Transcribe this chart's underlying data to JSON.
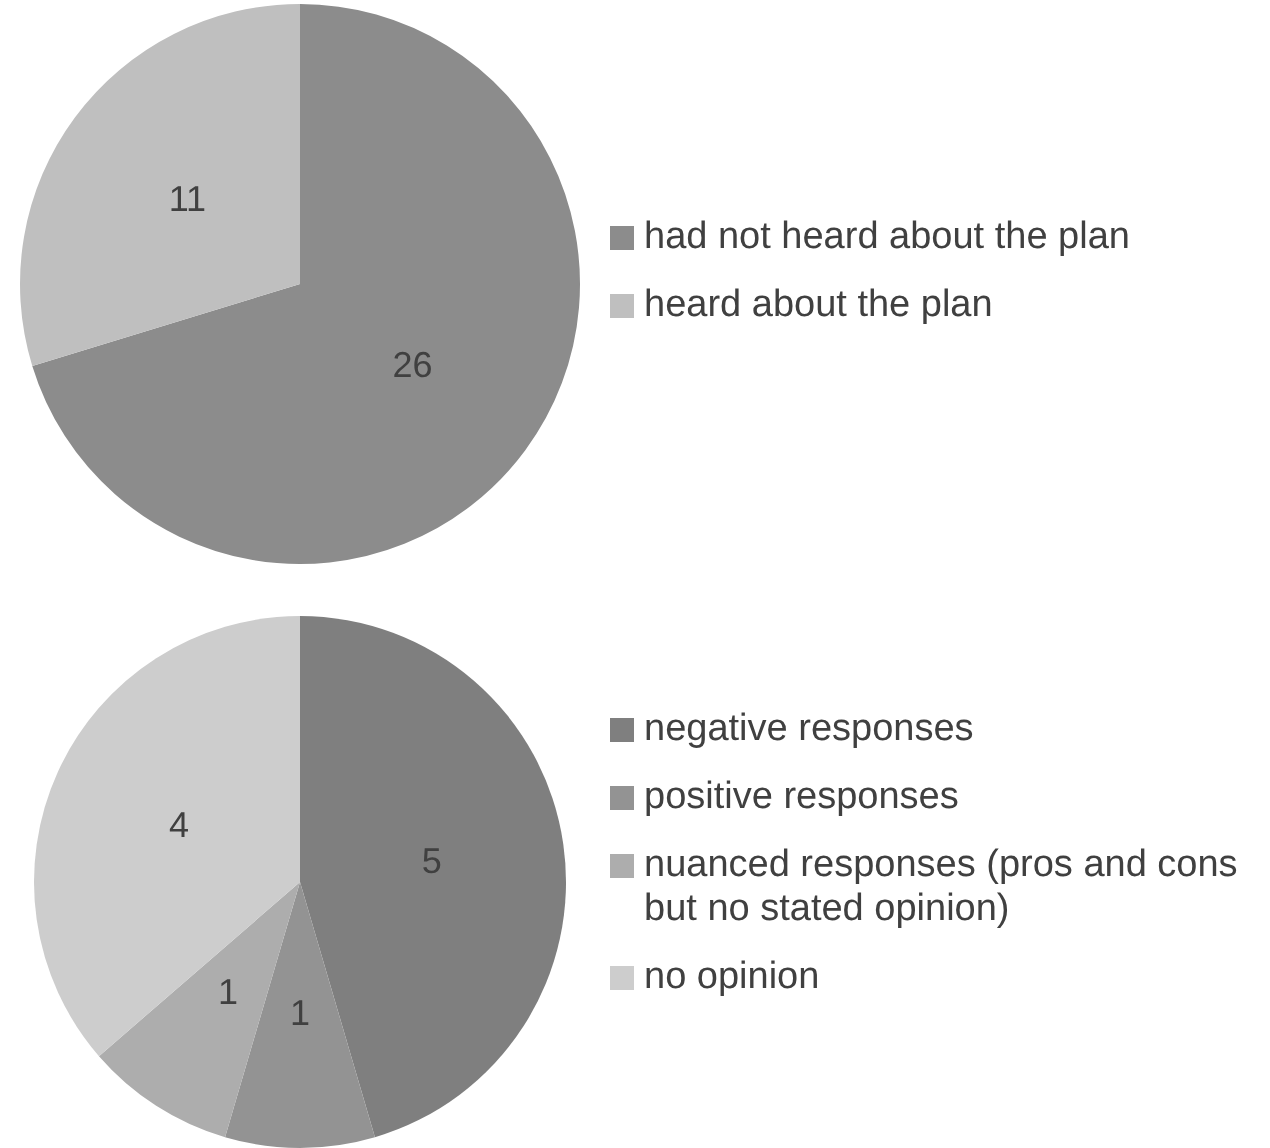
{
  "chart_data": [
    {
      "type": "pie",
      "categories": [
        "had not heard about the plan",
        "heard about the plan"
      ],
      "values": [
        26,
        11
      ],
      "colors": [
        "#8c8c8c",
        "#bfbfbf"
      ],
      "data_labels": true,
      "legend": "right"
    },
    {
      "type": "pie",
      "categories": [
        "negative responses",
        "positive responses",
        "nuanced responses (pros and cons but no stated opinion)",
        "no opinion"
      ],
      "values": [
        5,
        1,
        1,
        4
      ],
      "colors": [
        "#7f7f7f",
        "#939393",
        "#adadad",
        "#cdcdcd"
      ],
      "data_labels": true,
      "legend": "right"
    }
  ]
}
